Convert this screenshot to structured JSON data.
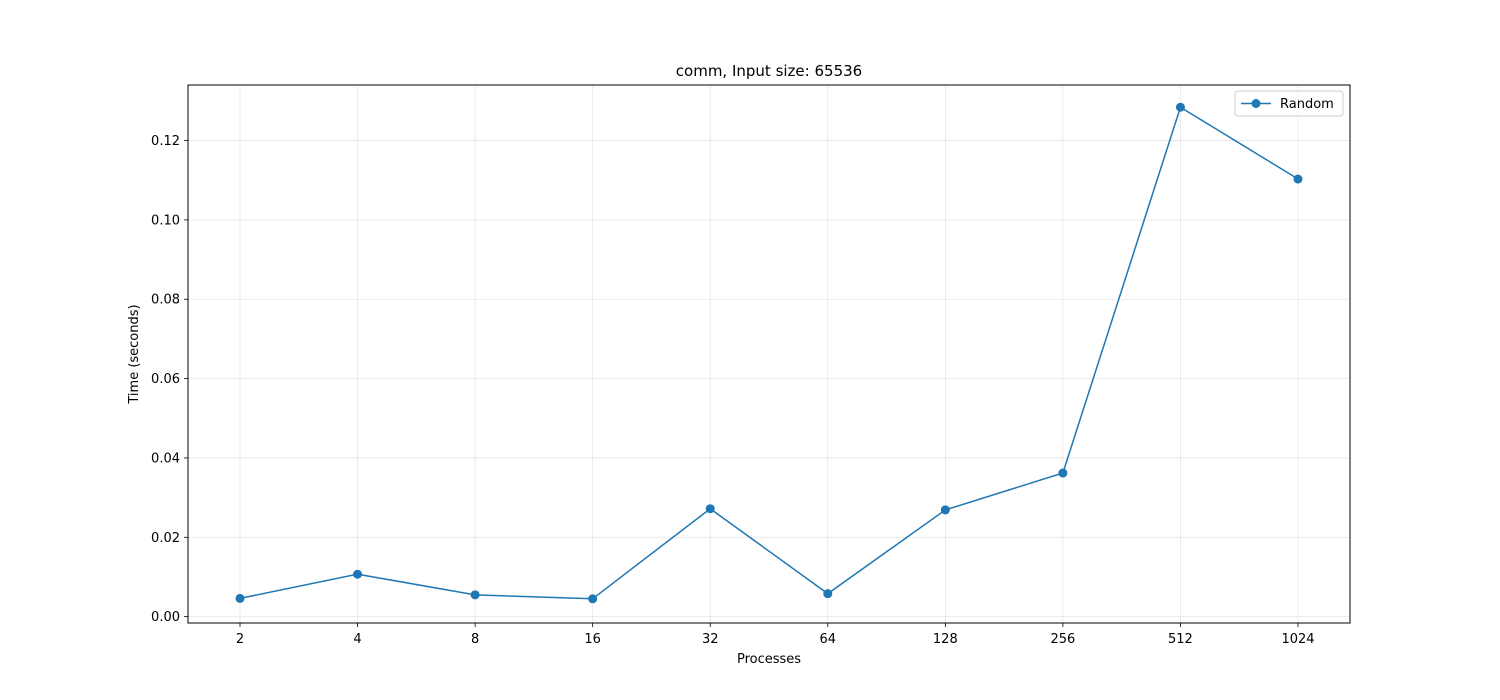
{
  "chart_data": {
    "type": "line",
    "title": "comm, Input size: 65536",
    "xlabel": "Processes",
    "ylabel": "Time (seconds)",
    "categories": [
      "2",
      "4",
      "8",
      "16",
      "32",
      "64",
      "128",
      "256",
      "512",
      "1024"
    ],
    "series": [
      {
        "name": "Random",
        "color": "#1f77b4",
        "marker": "circle",
        "values": [
          0.0046,
          0.0107,
          0.0055,
          0.0045,
          0.0272,
          0.0058,
          0.0269,
          0.0362,
          0.1284,
          0.1103
        ]
      }
    ],
    "ylim": [
      -0.0016,
      0.134
    ],
    "yticks": [
      "0.00",
      "0.02",
      "0.04",
      "0.06",
      "0.08",
      "0.10",
      "0.12"
    ],
    "ytick_values": [
      0,
      0.02,
      0.04,
      0.06,
      0.08,
      0.1,
      0.12
    ],
    "grid": true,
    "legend_position": "top-right"
  }
}
